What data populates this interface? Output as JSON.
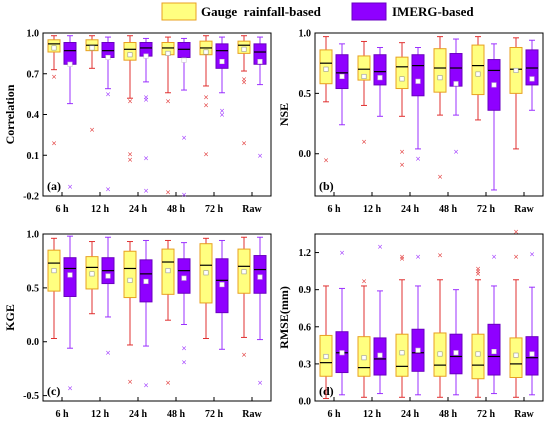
{
  "legend": {
    "items": [
      {
        "label": "Gauge  rainfall-based",
        "fill": "#ffff80",
        "edge": "#e8a020"
      },
      {
        "label": "IMERG-based",
        "fill": "#8f00ff",
        "edge": "#6a00c0"
      }
    ]
  },
  "colors": {
    "gauge_whisker": "#e03030",
    "imerg_whisker": "#9b30ff",
    "median": "#000000",
    "mean_marker": "#ffffff"
  },
  "chart_data": [
    {
      "type": "box",
      "panel_label": "(a)",
      "ylabel": "Correlation",
      "ylim": [
        -0.2,
        1.0
      ],
      "yticks": [
        -0.2,
        0.1,
        0.4,
        0.7,
        1.0
      ],
      "ytick_labels": [
        "-0.2",
        "0.1",
        "0.4",
        "0.7",
        "1.0"
      ],
      "categories": [
        "6 h",
        "12 h",
        "24 h",
        "48 h",
        "72 h",
        "Raw"
      ],
      "series": [
        {
          "name": "Gauge rainfall-based",
          "boxes": [
            {
              "whisker_low": 0.73,
              "q1": 0.86,
              "median": 0.92,
              "q3": 0.95,
              "whisker_high": 0.98,
              "mean": 0.89,
              "outliers": [
                0.68,
                0.19
              ]
            },
            {
              "whisker_low": 0.74,
              "q1": 0.87,
              "median": 0.91,
              "q3": 0.95,
              "whisker_high": 0.98,
              "mean": 0.89,
              "outliers": [
                0.29
              ]
            },
            {
              "whisker_low": 0.52,
              "q1": 0.8,
              "median": 0.88,
              "q3": 0.93,
              "whisker_high": 0.98,
              "mean": 0.84,
              "outliers": [
                0.5,
                0.11,
                0.07
              ]
            },
            {
              "whisker_low": 0.56,
              "q1": 0.84,
              "median": 0.89,
              "q3": 0.93,
              "whisker_high": 0.97,
              "mean": 0.85,
              "outliers": [
                0.5,
                -0.17
              ]
            },
            {
              "whisker_low": 0.61,
              "q1": 0.84,
              "median": 0.89,
              "q3": 0.94,
              "whisker_high": 0.98,
              "mean": 0.86,
              "outliers": [
                0.53,
                0.47,
                0.11
              ]
            },
            {
              "whisker_low": 0.72,
              "q1": 0.85,
              "median": 0.91,
              "q3": 0.94,
              "whisker_high": 0.98,
              "mean": 0.88,
              "outliers": [
                0.66,
                0.64,
                0.19
              ]
            }
          ]
        },
        {
          "name": "IMERG-based",
          "boxes": [
            {
              "whisker_low": 0.48,
              "q1": 0.77,
              "median": 0.87,
              "q3": 0.93,
              "whisker_high": 0.98,
              "mean": 0.77,
              "outliers": [
                -0.13
              ]
            },
            {
              "whisker_low": 0.59,
              "q1": 0.82,
              "median": 0.87,
              "q3": 0.93,
              "whisker_high": 0.97,
              "mean": 0.82,
              "outliers": [
                0.55,
                -0.15
              ]
            },
            {
              "whisker_low": 0.64,
              "q1": 0.83,
              "median": 0.89,
              "q3": 0.93,
              "whisker_high": 0.96,
              "mean": 0.83,
              "outliers": [
                0.53,
                0.51,
                0.08,
                -0.16
              ]
            },
            {
              "whisker_low": 0.58,
              "q1": 0.82,
              "median": 0.88,
              "q3": 0.93,
              "whisker_high": 0.96,
              "mean": 0.8,
              "outliers": [
                0.23,
                -0.19
              ]
            },
            {
              "whisker_low": 0.56,
              "q1": 0.74,
              "median": 0.87,
              "q3": 0.92,
              "whisker_high": 0.97,
              "mean": 0.79,
              "outliers": [
                0.43,
                0.4
              ]
            },
            {
              "whisker_low": 0.62,
              "q1": 0.77,
              "median": 0.86,
              "q3": 0.92,
              "whisker_high": 0.97,
              "mean": 0.79,
              "outliers": [
                0.1
              ]
            }
          ]
        }
      ]
    },
    {
      "type": "box",
      "panel_label": "(b)",
      "ylabel": "NSE",
      "ylim": [
        -0.35,
        1.0
      ],
      "yticks": [
        0.0,
        0.5,
        1.0
      ],
      "ytick_labels": [
        "0.0",
        "0.5",
        "1.0"
      ],
      "categories": [
        "6 h",
        "12 h",
        "24 h",
        "48 h",
        "72 h",
        "Raw"
      ],
      "series": [
        {
          "name": "Gauge rainfall-based",
          "boxes": [
            {
              "whisker_low": 0.43,
              "q1": 0.58,
              "median": 0.75,
              "q3": 0.86,
              "whisker_high": 0.97,
              "mean": 0.7,
              "outliers": [
                -0.05
              ]
            },
            {
              "whisker_low": 0.4,
              "q1": 0.61,
              "median": 0.7,
              "q3": 0.81,
              "whisker_high": 0.93,
              "mean": 0.64,
              "outliers": [
                0.1
              ]
            },
            {
              "whisker_low": 0.31,
              "q1": 0.54,
              "median": 0.72,
              "q3": 0.8,
              "whisker_high": 0.92,
              "mean": 0.62,
              "outliers": [
                0.02,
                -0.09
              ]
            },
            {
              "whisker_low": 0.32,
              "q1": 0.51,
              "median": 0.71,
              "q3": 0.87,
              "whisker_high": 0.97,
              "mean": 0.63,
              "outliers": [
                -0.19
              ]
            },
            {
              "whisker_low": 0.28,
              "q1": 0.49,
              "median": 0.73,
              "q3": 0.9,
              "whisker_high": 0.97,
              "mean": 0.66,
              "outliers": []
            },
            {
              "whisker_low": 0.04,
              "q1": 0.5,
              "median": 0.7,
              "q3": 0.88,
              "whisker_high": 0.96,
              "mean": 0.69,
              "outliers": []
            }
          ]
        },
        {
          "name": "IMERG-based",
          "boxes": [
            {
              "whisker_low": 0.24,
              "q1": 0.54,
              "median": 0.67,
              "q3": 0.82,
              "whisker_high": 0.91,
              "mean": 0.64,
              "outliers": []
            },
            {
              "whisker_low": 0.31,
              "q1": 0.57,
              "median": 0.68,
              "q3": 0.82,
              "whisker_high": 0.88,
              "mean": 0.63,
              "outliers": []
            },
            {
              "whisker_low": 0.04,
              "q1": 0.48,
              "median": 0.73,
              "q3": 0.82,
              "whisker_high": 0.88,
              "mean": 0.6,
              "outliers": [
                -0.04
              ]
            },
            {
              "whisker_low": 0.32,
              "q1": 0.56,
              "median": 0.71,
              "q3": 0.83,
              "whisker_high": 0.95,
              "mean": 0.58,
              "outliers": [
                0.02
              ]
            },
            {
              "whisker_low": -0.3,
              "q1": 0.36,
              "median": 0.69,
              "q3": 0.78,
              "whisker_high": 0.91,
              "mean": 0.57,
              "outliers": []
            },
            {
              "whisker_low": 0.36,
              "q1": 0.57,
              "median": 0.71,
              "q3": 0.86,
              "whisker_high": 0.94,
              "mean": 0.62,
              "outliers": []
            }
          ]
        }
      ]
    },
    {
      "type": "box",
      "panel_label": "(c)",
      "ylabel": "KGE",
      "ylim": [
        -0.55,
        1.0
      ],
      "yticks": [
        -0.5,
        0.0,
        0.5,
        1.0
      ],
      "ytick_labels": [
        "-0.5",
        "0.0",
        "0.5",
        "1.0"
      ],
      "categories": [
        "6 h",
        "12 h",
        "24 h",
        "48 h",
        "72 h",
        "Raw"
      ],
      "series": [
        {
          "name": "Gauge rainfall-based",
          "boxes": [
            {
              "whisker_low": 0.03,
              "q1": 0.47,
              "median": 0.73,
              "q3": 0.85,
              "whisker_high": 0.96,
              "mean": 0.66,
              "outliers": []
            },
            {
              "whisker_low": 0.26,
              "q1": 0.49,
              "median": 0.69,
              "q3": 0.79,
              "whisker_high": 0.93,
              "mean": 0.63,
              "outliers": []
            },
            {
              "whisker_low": -0.03,
              "q1": 0.41,
              "median": 0.68,
              "q3": 0.84,
              "whisker_high": 0.93,
              "mean": 0.57,
              "outliers": [
                -0.37
              ]
            },
            {
              "whisker_low": 0.2,
              "q1": 0.44,
              "median": 0.74,
              "q3": 0.86,
              "whisker_high": 0.94,
              "mean": 0.66,
              "outliers": [
                -0.38
              ]
            },
            {
              "whisker_low": 0.03,
              "q1": 0.36,
              "median": 0.71,
              "q3": 0.91,
              "whisker_high": 0.96,
              "mean": 0.64,
              "outliers": []
            },
            {
              "whisker_low": 0.04,
              "q1": 0.45,
              "median": 0.7,
              "q3": 0.86,
              "whisker_high": 0.97,
              "mean": 0.65,
              "outliers": [
                -0.12
              ]
            }
          ]
        },
        {
          "name": "IMERG-based",
          "boxes": [
            {
              "whisker_low": -0.06,
              "q1": 0.42,
              "median": 0.68,
              "q3": 0.78,
              "whisker_high": 0.98,
              "mean": 0.62,
              "outliers": [
                -0.43
              ]
            },
            {
              "whisker_low": 0.23,
              "q1": 0.54,
              "median": 0.66,
              "q3": 0.78,
              "whisker_high": 0.97,
              "mean": 0.61,
              "outliers": [
                -0.1
              ]
            },
            {
              "whisker_low": -0.04,
              "q1": 0.37,
              "median": 0.63,
              "q3": 0.76,
              "whisker_high": 0.94,
              "mean": 0.56,
              "outliers": [
                -0.4
              ]
            },
            {
              "whisker_low": 0.16,
              "q1": 0.45,
              "median": 0.66,
              "q3": 0.77,
              "whisker_high": 0.92,
              "mean": 0.59,
              "outliers": [
                -0.06,
                -0.19
              ]
            },
            {
              "whisker_low": -0.07,
              "q1": 0.27,
              "median": 0.57,
              "q3": 0.77,
              "whisker_high": 0.94,
              "mean": 0.53,
              "outliers": []
            },
            {
              "whisker_low": 0.02,
              "q1": 0.45,
              "median": 0.67,
              "q3": 0.8,
              "whisker_high": 0.97,
              "mean": 0.6,
              "outliers": [
                -0.38
              ]
            }
          ]
        }
      ]
    },
    {
      "type": "box",
      "panel_label": "(d)",
      "ylabel": "RMSE(mm)",
      "ylim": [
        0.0,
        1.35
      ],
      "yticks": [
        0.0,
        0.3,
        0.6,
        0.9,
        1.2
      ],
      "ytick_labels": [
        "0.0",
        "0.3",
        "0.6",
        "0.9",
        "1.2"
      ],
      "categories": [
        "6 h",
        "12 h",
        "24 h",
        "48 h",
        "72 h",
        "Raw"
      ],
      "series": [
        {
          "name": "Gauge rainfall-based",
          "boxes": [
            {
              "whisker_low": 0.02,
              "q1": 0.2,
              "median": 0.31,
              "q3": 0.53,
              "whisker_high": 0.93,
              "mean": 0.36,
              "outliers": []
            },
            {
              "whisker_low": 0.03,
              "q1": 0.2,
              "median": 0.27,
              "q3": 0.52,
              "whisker_high": 0.93,
              "mean": 0.35,
              "outliers": [
                0.97
              ]
            },
            {
              "whisker_low": 0.03,
              "q1": 0.2,
              "median": 0.28,
              "q3": 0.54,
              "whisker_high": 0.98,
              "mean": 0.39,
              "outliers": [
                1.17,
                1.15
              ]
            },
            {
              "whisker_low": 0.03,
              "q1": 0.2,
              "median": 0.29,
              "q3": 0.55,
              "whisker_high": 0.98,
              "mean": 0.38,
              "outliers": [
                1.18
              ]
            },
            {
              "whisker_low": 0.03,
              "q1": 0.18,
              "median": 0.29,
              "q3": 0.54,
              "whisker_high": 0.98,
              "mean": 0.38,
              "outliers": [
                1.07,
                1.05,
                1.03
              ]
            },
            {
              "whisker_low": 0.03,
              "q1": 0.19,
              "median": 0.3,
              "q3": 0.51,
              "whisker_high": 0.98,
              "mean": 0.37,
              "outliers": [
                1.37,
                1.17
              ]
            }
          ]
        },
        {
          "name": "IMERG-based",
          "boxes": [
            {
              "whisker_low": 0.05,
              "q1": 0.23,
              "median": 0.39,
              "q3": 0.56,
              "whisker_high": 0.91,
              "mean": 0.39,
              "outliers": [
                1.2
              ]
            },
            {
              "whisker_low": 0.06,
              "q1": 0.21,
              "median": 0.34,
              "q3": 0.51,
              "whisker_high": 0.89,
              "mean": 0.37,
              "outliers": [
                1.25
              ]
            },
            {
              "whisker_low": 0.05,
              "q1": 0.24,
              "median": 0.39,
              "q3": 0.58,
              "whisker_high": 0.93,
              "mean": 0.41,
              "outliers": [
                1.17
              ]
            },
            {
              "whisker_low": 0.05,
              "q1": 0.22,
              "median": 0.36,
              "q3": 0.54,
              "whisker_high": 0.9,
              "mean": 0.39,
              "outliers": []
            },
            {
              "whisker_low": 0.06,
              "q1": 0.21,
              "median": 0.36,
              "q3": 0.62,
              "whisker_high": 0.93,
              "mean": 0.4,
              "outliers": [
                1.17
              ]
            },
            {
              "whisker_low": 0.05,
              "q1": 0.21,
              "median": 0.35,
              "q3": 0.52,
              "whisker_high": 0.92,
              "mean": 0.38,
              "outliers": [
                1.19
              ]
            }
          ]
        }
      ]
    }
  ]
}
